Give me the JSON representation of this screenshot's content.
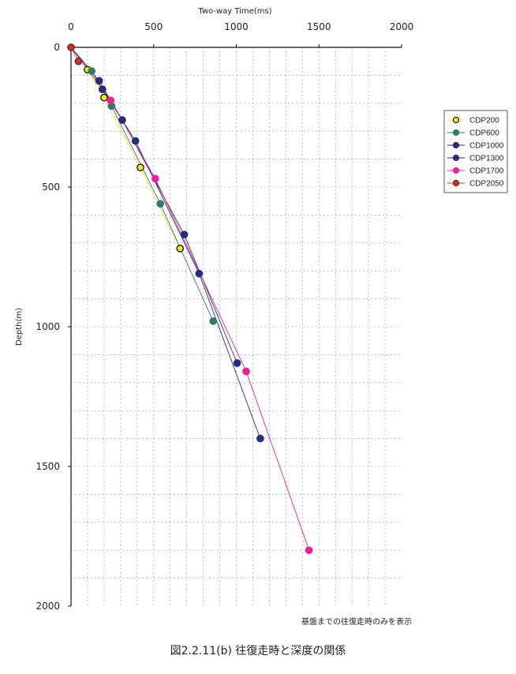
{
  "chart_data": {
    "type": "scatter",
    "xlabel": "Two-way Time(ms)",
    "ylabel": "Depth(m)",
    "xlim": [
      0,
      2000
    ],
    "ylim": [
      0,
      2000
    ],
    "y_inverted": true,
    "x_axis_position": "top",
    "xticks": [
      0,
      500,
      1000,
      1500,
      2000
    ],
    "yticks": [
      0,
      500,
      1000,
      1500,
      2000
    ],
    "x_minor_gridlines": "dotted, every 100 ms",
    "y_minor_gridlines": "dotted, every 100 m",
    "legend_position": "right",
    "series": [
      {
        "name": "CDP200",
        "color": "#f0e61e",
        "edge": "#111111",
        "x": [
          0,
          100,
          200,
          420,
          660
        ],
        "y": [
          0,
          80,
          180,
          430,
          720
        ]
      },
      {
        "name": "CDP600",
        "color": "#2e7d6a",
        "edge": "#2e7d6a",
        "x": [
          0,
          125,
          245,
          540,
          860
        ],
        "y": [
          0,
          85,
          210,
          560,
          980
        ]
      },
      {
        "name": "CDP1000",
        "color": "#2b2a7a",
        "edge": "#2b2a7a",
        "x": [
          0,
          170,
          310,
          685,
          1005
        ],
        "y": [
          0,
          120,
          260,
          670,
          1130
        ]
      },
      {
        "name": "CDP1300",
        "color": "#2b2a7a",
        "edge": "#2b2a7a",
        "x": [
          0,
          190,
          390,
          775,
          1145
        ],
        "y": [
          0,
          150,
          335,
          810,
          1400
        ]
      },
      {
        "name": "CDP1700",
        "color": "#e8229b",
        "edge": "#e8229b",
        "x": [
          0,
          240,
          510,
          1060,
          1440
        ],
        "y": [
          0,
          190,
          470,
          1160,
          1800
        ]
      },
      {
        "name": "CDP2050",
        "color": "#c0392b",
        "edge": "#7a1a14",
        "x": [
          0,
          45
        ],
        "y": [
          0,
          50
        ]
      }
    ],
    "annotation": "基盤までの往復走時のみを表示"
  },
  "caption": "図2.2.11(b)  往復走時と深度の関係"
}
